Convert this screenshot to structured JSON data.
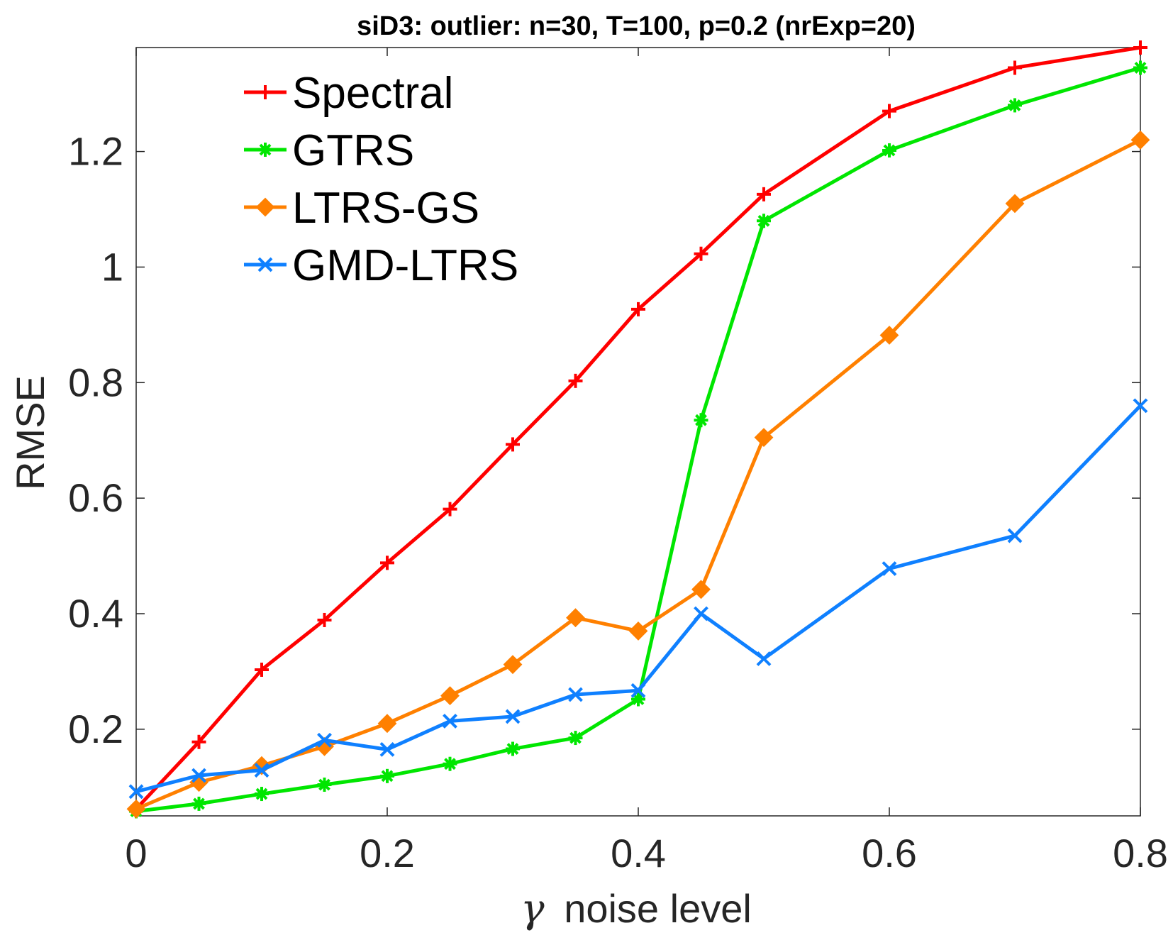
{
  "chart_data": {
    "type": "line",
    "title": "siD3: outlier: n=30, T=100, p=0.2 (nrExp=20)",
    "xlabel_symbol": "γ",
    "xlabel_text": "noise level",
    "ylabel": "RMSE",
    "xlim": [
      0,
      0.8
    ],
    "ylim": [
      0.05,
      1.38
    ],
    "xticks": [
      0,
      0.2,
      0.4,
      0.6,
      0.8
    ],
    "xtick_labels": [
      "0",
      "0.2",
      "0.4",
      "0.6",
      "0.8"
    ],
    "yticks": [
      0.2,
      0.4,
      0.6,
      0.8,
      1.0,
      1.2
    ],
    "ytick_labels": [
      "0.2",
      "0.4",
      "0.6",
      "0.8",
      "1",
      "1.2"
    ],
    "grid": false,
    "legend_position": "top-left",
    "x": [
      0,
      0.05,
      0.1,
      0.15,
      0.2,
      0.25,
      0.3,
      0.35,
      0.4,
      0.45,
      0.5,
      0.6,
      0.7,
      0.8
    ],
    "series": [
      {
        "name": "Spectral",
        "color": "#ff0000",
        "marker": "plus",
        "values": [
          0.062,
          0.178,
          0.303,
          0.389,
          0.488,
          0.581,
          0.693,
          0.803,
          0.927,
          1.023,
          1.126,
          1.27,
          1.345,
          1.38
        ]
      },
      {
        "name": "GTRS",
        "color": "#00e600",
        "marker": "asterisk",
        "values": [
          0.058,
          0.071,
          0.088,
          0.104,
          0.119,
          0.14,
          0.166,
          0.185,
          0.252,
          0.735,
          1.08,
          1.202,
          1.28,
          1.345
        ]
      },
      {
        "name": "LTRS-GS",
        "color": "#ff8000",
        "marker": "diamond",
        "values": [
          0.062,
          0.108,
          0.137,
          0.17,
          0.21,
          0.258,
          0.312,
          0.393,
          0.37,
          0.442,
          0.705,
          0.882,
          1.11,
          1.22
        ]
      },
      {
        "name": "GMD-LTRS",
        "color": "#0f80ff",
        "marker": "x",
        "values": [
          0.092,
          0.12,
          0.129,
          0.181,
          0.165,
          0.214,
          0.222,
          0.26,
          0.267,
          0.4,
          0.322,
          0.478,
          0.535,
          0.76
        ]
      }
    ]
  }
}
